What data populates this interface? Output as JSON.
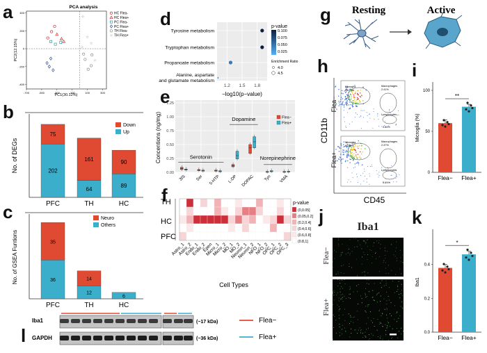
{
  "panel_labels": [
    "a",
    "b",
    "c",
    "d",
    "e",
    "f",
    "g",
    "h",
    "i",
    "j",
    "k",
    "l"
  ],
  "colors": {
    "red": "#e04a33",
    "blue": "#3aaecb",
    "dark_navy": "#0d1f3c"
  },
  "icons": [
    "microglia-resting-icon",
    "microglia-active-icon",
    "arrow-right-icon"
  ],
  "chart_data": [
    {
      "id": "a",
      "type": "scatter",
      "title": "PCA analysis",
      "xlabel": "PC1(30.12%)",
      "ylabel": "PC2(12.15%)",
      "xlim": [
        -700,
        350
      ],
      "ylim": [
        -450,
        420
      ],
      "xticks": [
        "-700",
        "-500",
        "-300",
        "-100",
        "100",
        "300"
      ],
      "yticks": [
        "-400",
        "-200",
        "0",
        "200",
        "400"
      ],
      "series": [
        {
          "name": "HC Flea-",
          "color": "#d03030",
          "marker": "circle",
          "points": [
            [
              -370,
              190
            ],
            [
              -330,
              250
            ],
            [
              -420,
              120
            ]
          ]
        },
        {
          "name": "HC Flea+",
          "color": "#d03030",
          "marker": "triangle",
          "points": [
            [
              -240,
              110
            ],
            [
              -210,
              80
            ],
            [
              -300,
              160
            ]
          ]
        },
        {
          "name": "PC Flea-",
          "color": "#30a0a0",
          "marker": "square",
          "points": [
            [
              -320,
              50
            ],
            [
              -380,
              80
            ],
            [
              -250,
              70
            ]
          ]
        },
        {
          "name": "PC Flea+",
          "color": "#3050a0",
          "marker": "diamond",
          "points": [
            [
              -430,
              -160
            ],
            [
              -400,
              -200
            ],
            [
              -380,
              -110
            ],
            [
              -350,
              -240
            ]
          ]
        },
        {
          "name": "TH Flea-",
          "color": "#909090",
          "marker": "circle",
          "points": [
            [
              50,
              -60
            ],
            [
              70,
              -120
            ],
            [
              150,
              -190
            ],
            [
              160,
              -70
            ],
            [
              110,
              -230
            ]
          ]
        },
        {
          "name": "TH Flea+",
          "color": "#909090",
          "marker": "star",
          "points": [
            [
              40,
              360
            ],
            [
              100,
              130
            ],
            [
              150,
              60
            ],
            [
              30,
              20
            ],
            [
              200,
              -130
            ]
          ]
        }
      ]
    },
    {
      "id": "b",
      "type": "bar",
      "ylabel": "No. of DEGs",
      "categories": [
        "PFC",
        "TH",
        "HC"
      ],
      "series": [
        {
          "name": "Up",
          "values": [
            202,
            64,
            89
          ],
          "color": "#3aaecb"
        },
        {
          "name": "Down",
          "values": [
            75,
            161,
            90
          ],
          "color": "#e04a33"
        }
      ],
      "ylim": [
        0,
        290
      ],
      "legend": "top-right"
    },
    {
      "id": "c",
      "type": "bar",
      "ylabel": "No. of GSEA Funtions",
      "categories": [
        "PFC",
        "TH",
        "HC"
      ],
      "series": [
        {
          "name": "Others",
          "values": [
            36,
            12,
            6
          ],
          "color": "#3aaecb"
        },
        {
          "name": "Neuro",
          "values": [
            35,
            14,
            0
          ],
          "color": "#e04a33"
        }
      ],
      "ylim": [
        0,
        75
      ],
      "legend": "top-right"
    },
    {
      "id": "d",
      "type": "scatter",
      "xlabel": "−log10(p−value)",
      "categories": [
        "Tyrosine metabolism",
        "Tryptophan metabolism",
        "Propanoate metabolism",
        "Alanine, aspartate and glutamate metabolism"
      ],
      "x": [
        1.9,
        1.9,
        1.27,
        1.02
      ],
      "xlim": [
        1.0,
        2.0
      ],
      "xticks": [
        "1.2",
        "1.5",
        "1.8"
      ],
      "pvalue": [
        0.001,
        0.002,
        0.065,
        0.095
      ],
      "enrichment": [
        5,
        5,
        5,
        4
      ],
      "legend_title_color": "p-value",
      "legend_color_ticks": [
        "0.100",
        "0.075",
        "0.050",
        "0.025"
      ],
      "legend_title_size": "Enrichment Ratio",
      "legend_size_ticks": [
        "4.0",
        "4.5"
      ]
    },
    {
      "id": "e",
      "type": "box",
      "ylabel": "Concentions (ng/mg)",
      "categories": [
        "3IS",
        "Ser",
        "5-HTP",
        "L-DP",
        "DOPAC",
        "Tyn",
        "VMA"
      ],
      "ylim": [
        0,
        1.3
      ],
      "yticks": [
        "0.00",
        "0.25",
        "0.50",
        "0.75",
        "1.00",
        "1.25"
      ],
      "groups": [
        {
          "name": "Serotonin",
          "categories": [
            "3IS",
            "Ser",
            "5-HTP"
          ]
        },
        {
          "name": "Dopamine",
          "categories": [
            "L-DP",
            "DOPAC"
          ]
        },
        {
          "name": "Norepinephrine",
          "categories": [
            "Tyn",
            "VMA"
          ]
        }
      ],
      "series": [
        {
          "name": "Flea−",
          "color": "#e04a33",
          "medians": [
            0.07,
            0.04,
            0.03,
            0.12,
            0.44,
            0.01,
            0.01
          ],
          "q1": [
            0.05,
            0.03,
            0.02,
            0.1,
            0.34,
            0.005,
            0.005
          ],
          "q3": [
            0.09,
            0.05,
            0.04,
            0.14,
            0.5,
            0.015,
            0.015
          ]
        },
        {
          "name": "Flea+",
          "color": "#3aaecb",
          "medians": [
            0.05,
            0.03,
            0.02,
            0.3,
            0.55,
            0.02,
            0.01
          ],
          "q1": [
            0.04,
            0.02,
            0.01,
            0.24,
            0.44,
            0.01,
            0.005
          ],
          "q3": [
            0.06,
            0.04,
            0.03,
            0.38,
            0.64,
            0.03,
            0.02
          ]
        }
      ],
      "legend": "top-right"
    },
    {
      "id": "f",
      "type": "heatmap",
      "xlabel": "Cell Types",
      "rows": [
        "TH",
        "HC",
        "PFC"
      ],
      "columns": [
        "Astro_1",
        "Astro_2",
        "Endo_1",
        "Endo_2",
        "Epen",
        "Micro_1",
        "Micro_2",
        "MO_1",
        "MO_2",
        "Neuron_1",
        "Neuron_2",
        "NFO_1",
        "NFO_2",
        "OPC_1",
        "OPC_2",
        "OPC_3"
      ],
      "legend_title": "p-value",
      "legend_bins": [
        "(0,0.05]",
        "(0.05,0.2]",
        "(0.2,0.4]",
        "(0.4,0.6]",
        "(0.6,0.8]",
        "(0.8,1]"
      ]
    },
    {
      "id": "i",
      "type": "bar",
      "ylabel": "Microglia (%)",
      "categories": [
        "Flea−",
        "Flea+"
      ],
      "values": [
        60,
        80
      ],
      "errors": [
        4,
        3
      ],
      "ylim": [
        0,
        100
      ],
      "yticks": [
        "0",
        "50",
        "100"
      ],
      "significance": "**"
    },
    {
      "id": "k",
      "type": "bar",
      "ylabel": "Iba1",
      "categories": [
        "Flea−",
        "Flea+"
      ],
      "values": [
        0.38,
        0.46
      ],
      "errors": [
        0.02,
        0.02
      ],
      "ylim": [
        0,
        0.6
      ],
      "yticks": [
        "0.0",
        "0.2",
        "0.4"
      ],
      "significance": "*"
    }
  ],
  "panel_g": {
    "resting_label": "Resting",
    "active_label": "Active"
  },
  "panel_h": {
    "xlabel": "CD45",
    "ylabel": "CD11b",
    "top_row_label": "Flea−",
    "bottom_row_label": "Flea+",
    "gate_microglia": "Microglia",
    "gate_macrophages": "Macrophages",
    "gate_lymphocytes": "Lymphocytes",
    "top_values": {
      "microglia": "69.77%",
      "macrophages": "2.41%",
      "lymphocytes": "0.84%"
    },
    "bottom_values": {
      "microglia": "81.61%",
      "macrophages": "2.37%",
      "lymphocytes": "0.61%"
    }
  },
  "panel_j": {
    "title": "Iba1",
    "top_label": "Flea−",
    "bottom_label": "Flea+"
  },
  "panel_l": {
    "rows": [
      {
        "label": "Iba1",
        "size": "(~17 kDa)"
      },
      {
        "label": "GAPDH",
        "size": "(~36 kDa)"
      }
    ],
    "legend": [
      {
        "name": "Flea−",
        "color": "#e04a33"
      },
      {
        "name": "Flea+",
        "color": "#3aaecb"
      }
    ]
  }
}
